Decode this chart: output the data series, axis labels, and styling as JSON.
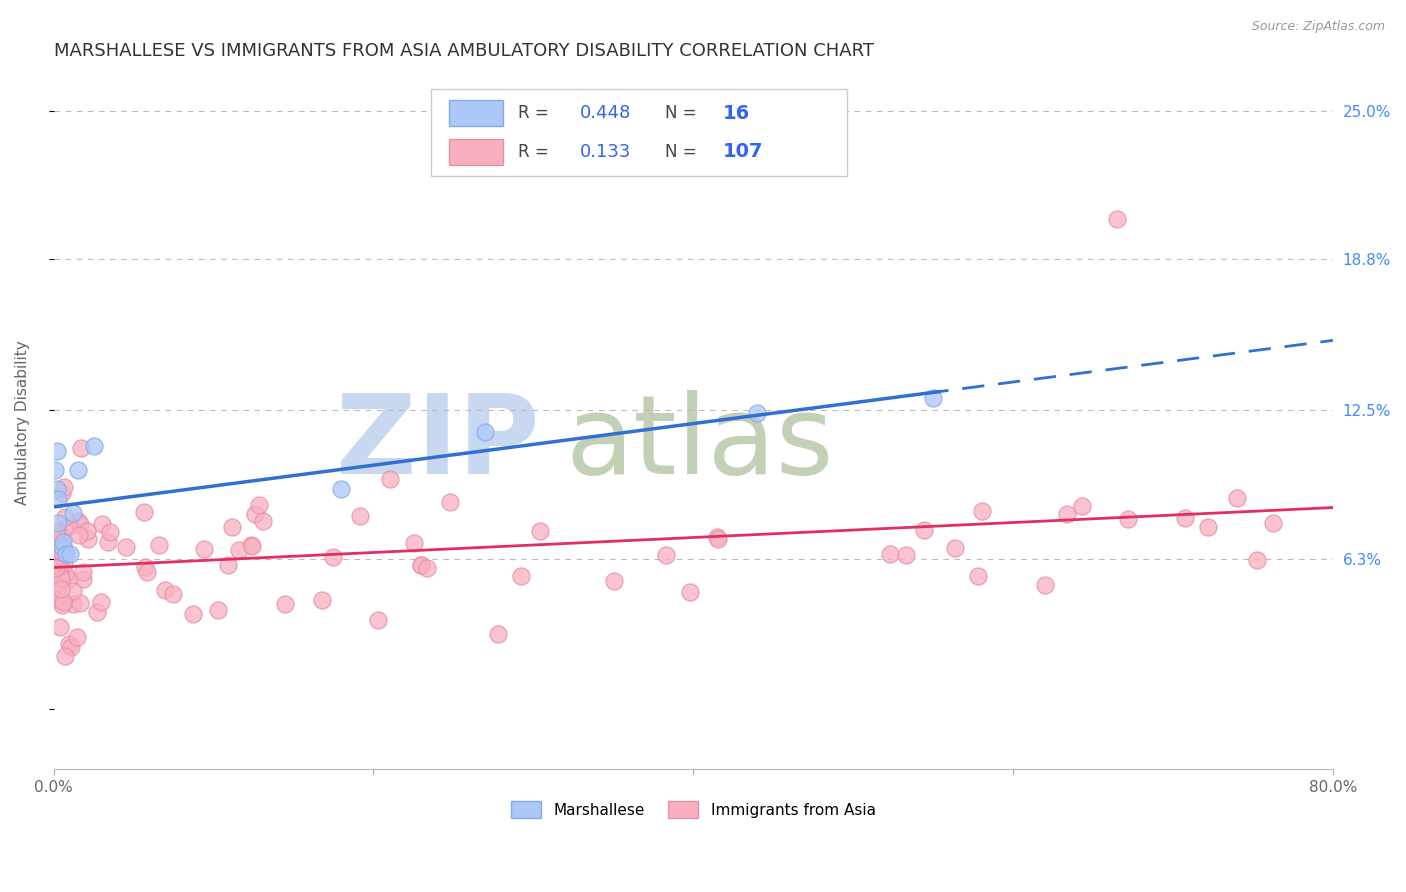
{
  "title": "MARSHALLESE VS IMMIGRANTS FROM ASIA AMBULATORY DISABILITY CORRELATION CHART",
  "source": "Source: ZipAtlas.com",
  "ylabel": "Ambulatory Disability",
  "r_marshallese": 0.448,
  "n_marshallese": 16,
  "r_asia": 0.133,
  "n_asia": 107,
  "color_marshallese_fill": "#aac8f8",
  "color_marshallese_edge": "#88aae8",
  "color_asia_fill": "#f8b0c0",
  "color_asia_edge": "#e890a8",
  "trend_color_marshallese": "#3070d0",
  "trend_color_asia": "#e03060",
  "background_color": "#ffffff",
  "grid_color": "#bbbbbb",
  "ytick_color": "#4488ff",
  "title_color": "#333333",
  "source_color": "#999999",
  "watermark_zip_color": "#c8d8f0",
  "watermark_atlas_color": "#b8c8a8",
  "marsh_x": [
    0.001,
    0.002,
    0.002,
    0.003,
    0.003,
    0.005,
    0.006,
    0.008,
    0.01,
    0.012,
    0.015,
    0.025,
    0.18,
    0.27,
    0.44,
    0.55
  ],
  "marsh_y": [
    0.1,
    0.108,
    0.092,
    0.088,
    0.078,
    0.068,
    0.07,
    0.065,
    0.065,
    0.082,
    0.1,
    0.11,
    0.092,
    0.116,
    0.124,
    0.13
  ],
  "xmin": 0.0,
  "xmax": 0.8,
  "ymin": -0.025,
  "ymax": 0.265,
  "ytick_vals": [
    0.0,
    0.063,
    0.125,
    0.188,
    0.25
  ],
  "ytick_labels": [
    "",
    "6.3%",
    "12.5%",
    "18.8%",
    "25.0%"
  ],
  "xtick_vals": [
    0.0,
    0.2,
    0.4,
    0.6,
    0.8
  ],
  "xtick_labels": [
    "0.0%",
    "",
    "",
    "",
    "80.0%"
  ]
}
